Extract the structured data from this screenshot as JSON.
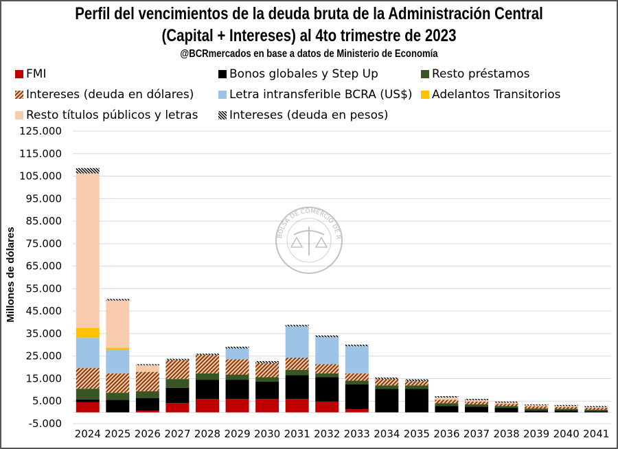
{
  "chart_data": {
    "type": "bar",
    "stacked": true,
    "title": "Perfil del vencimientos de la deuda bruta de la Administración Central",
    "subtitle": "(Capital + Intereses) al 4to trimestre de 2023",
    "source": "@BCRmercados en base a datos de Ministerio de Economía",
    "xlabel": "",
    "ylabel": "Millones de dólares",
    "ylim": [
      -5000,
      125000
    ],
    "yticks": [
      "125.000",
      "115.000",
      "105.000",
      "95.000",
      "85.000",
      "75.000",
      "65.000",
      "55.000",
      "45.000",
      "35.000",
      "25.000",
      "15.000",
      "5.000",
      "-5.000"
    ],
    "ytick_values": [
      125000,
      115000,
      105000,
      95000,
      85000,
      75000,
      65000,
      55000,
      45000,
      35000,
      25000,
      15000,
      5000,
      -5000
    ],
    "grid": true,
    "legend_position": "top",
    "watermark": "BOLSA DE COMERCIO DE ROSARIO",
    "categories": [
      "2024",
      "2025",
      "2026",
      "2027",
      "2028",
      "2029",
      "2030",
      "2031",
      "2032",
      "2033",
      "2034",
      "2035",
      "2036",
      "2037",
      "2038",
      "2039",
      "2040",
      "2041"
    ],
    "series": [
      {
        "name": "FMI",
        "color": "#C00000",
        "pattern": "solid",
        "values": [
          4500,
          0,
          800,
          4100,
          5900,
          5900,
          5900,
          5900,
          4800,
          1400,
          0,
          0,
          0,
          0,
          0,
          0,
          0,
          0
        ]
      },
      {
        "name": "Bonos globales y Step Up",
        "color": "#000000",
        "pattern": "solid",
        "values": [
          1200,
          5600,
          5600,
          6800,
          8600,
          8600,
          7700,
          10600,
          10900,
          11000,
          10400,
          10400,
          2800,
          2500,
          2000,
          800,
          800,
          500
        ]
      },
      {
        "name": "Resto préstamos",
        "color": "#375623",
        "pattern": "solid",
        "values": [
          4800,
          3100,
          3000,
          3900,
          2800,
          2300,
          2000,
          2400,
          1600,
          1700,
          1600,
          1600,
          1300,
          1100,
          800,
          900,
          800,
          700
        ]
      },
      {
        "name": "Intereses (deuda en dólares)",
        "color": "#843C0C",
        "pattern": "hatch-light",
        "values": [
          9200,
          8600,
          8600,
          8400,
          8200,
          6800,
          6300,
          5400,
          4100,
          3200,
          2700,
          1900,
          1500,
          1200,
          1000,
          1000,
          800,
          800
        ]
      },
      {
        "name": "Letra intransferible BCRA (US$)",
        "color": "#9DC3E6",
        "pattern": "solid",
        "values": [
          13400,
          10500,
          0,
          0,
          0,
          4800,
          0,
          13900,
          12000,
          12100,
          0,
          0,
          0,
          0,
          0,
          0,
          0,
          0
        ]
      },
      {
        "name": "Adelantos Transitorios",
        "color": "#FFC000",
        "pattern": "solid",
        "values": [
          4400,
          900,
          0,
          0,
          0,
          0,
          0,
          0,
          0,
          0,
          0,
          0,
          0,
          0,
          0,
          0,
          0,
          0
        ]
      },
      {
        "name": "Resto títulos públicos y letras",
        "color": "#F8CBAD",
        "pattern": "solid",
        "values": [
          68700,
          21000,
          2900,
          0,
          0,
          0,
          0,
          0,
          0,
          0,
          0,
          0,
          1000,
          600,
          500,
          400,
          400,
          300
        ]
      },
      {
        "name": "Intereses (deuda en pesos)",
        "color": "#000000",
        "pattern": "hatch-dark",
        "values": [
          2400,
          700,
          500,
          600,
          600,
          800,
          900,
          700,
          800,
          700,
          800,
          800,
          600,
          600,
          500,
          400,
          500,
          500
        ]
      }
    ]
  },
  "legend": [
    {
      "label": "FMI",
      "swatch": "fmi"
    },
    {
      "label": "Bonos globales y Step Up",
      "swatch": "bonos"
    },
    {
      "label": "Resto préstamos",
      "swatch": "prestamos"
    },
    {
      "label": "Intereses (deuda en dólares)",
      "swatch": "int-usd"
    },
    {
      "label": "Letra intransferible BCRA (US$)",
      "swatch": "letra"
    },
    {
      "label": "Adelantos Transitorios",
      "swatch": "adelantos"
    },
    {
      "label": "Resto títulos públicos y letras",
      "swatch": "titulos"
    },
    {
      "label": "Intereses (deuda en pesos)",
      "swatch": "int-ars"
    }
  ]
}
